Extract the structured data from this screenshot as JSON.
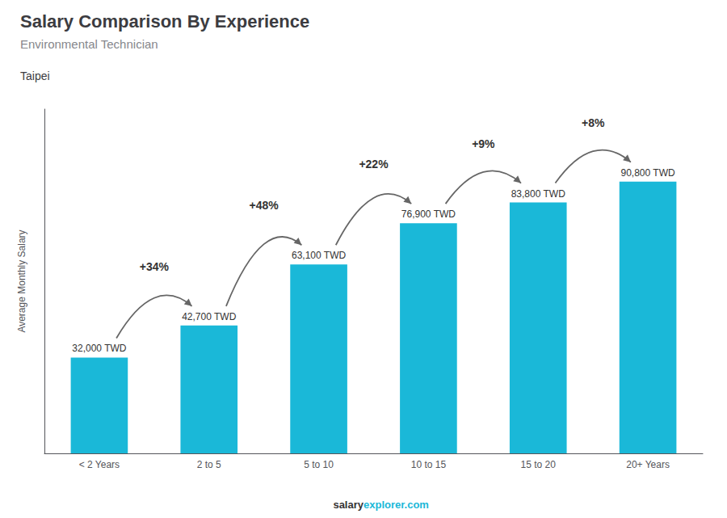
{
  "chart_data": {
    "type": "bar",
    "title": "Salary Comparison By Experience",
    "subtitle": "Environmental Technician",
    "city": "Taipei",
    "ylabel": "Average Monthly Salary",
    "categories": [
      "< 2 Years",
      "2 to 5",
      "5 to 10",
      "10 to 15",
      "15 to 20",
      "20+ Years"
    ],
    "values": [
      32000,
      42700,
      63100,
      76900,
      83800,
      90800
    ],
    "value_labels": [
      "32,000 TWD",
      "42,700 TWD",
      "63,100 TWD",
      "76,900 TWD",
      "83,800 TWD",
      "90,800 TWD"
    ],
    "pct_labels": [
      "+34%",
      "+48%",
      "+22%",
      "+9%",
      "+8%"
    ],
    "footer": [
      "salary",
      "explorer.com"
    ],
    "color": "#1ab8d8",
    "ylim": [
      0,
      115000
    ],
    "data_labels": true,
    "grid": false,
    "tick_labels": "x"
  }
}
